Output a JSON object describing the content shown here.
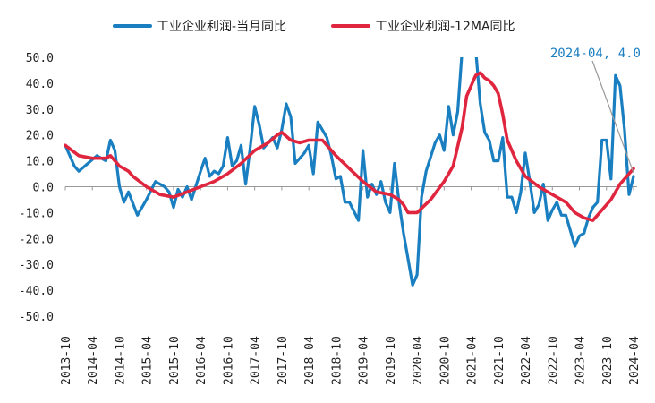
{
  "chart_data": {
    "type": "line",
    "ylim": [
      -50,
      50
    ],
    "ytick_labels": [
      "50.0",
      "40.0",
      "30.0",
      "20.0",
      "10.0",
      "0.0",
      "-10.0",
      "-20.0",
      "-30.0",
      "-40.0",
      "-50.0"
    ],
    "xtick_labels": [
      "2013-10",
      "2014-04",
      "2014-10",
      "2015-04",
      "2015-10",
      "2016-04",
      "2016-10",
      "2017-04",
      "2017-10",
      "2018-04",
      "2018-10",
      "2019-04",
      "2019-10",
      "2020-04",
      "2020-10",
      "2021-04",
      "2021-10",
      "2022-04",
      "2022-10",
      "2023-04",
      "2023-10",
      "2024-04"
    ],
    "x_start": "2013-10",
    "x_end": "2024-04",
    "series": [
      {
        "name": "工业企业利润-当月同比",
        "color": "#1a7fc1",
        "points": [
          [
            "2013-10",
            16
          ],
          [
            "2013-12",
            8
          ],
          [
            "2014-01",
            6
          ],
          [
            "2014-03",
            9
          ],
          [
            "2014-05",
            12
          ],
          [
            "2014-06",
            11
          ],
          [
            "2014-07",
            10
          ],
          [
            "2014-08",
            18
          ],
          [
            "2014-09",
            14
          ],
          [
            "2014-10",
            0
          ],
          [
            "2014-11",
            -6
          ],
          [
            "2014-12",
            -2
          ],
          [
            "2015-02",
            -11
          ],
          [
            "2015-04",
            -5
          ],
          [
            "2015-06",
            2
          ],
          [
            "2015-08",
            0
          ],
          [
            "2015-09",
            -2
          ],
          [
            "2015-10",
            -8
          ],
          [
            "2015-11",
            -1
          ],
          [
            "2015-12",
            -4
          ],
          [
            "2016-01",
            0
          ],
          [
            "2016-02",
            -5
          ],
          [
            "2016-04",
            6
          ],
          [
            "2016-05",
            11
          ],
          [
            "2016-06",
            4
          ],
          [
            "2016-07",
            6
          ],
          [
            "2016-08",
            5
          ],
          [
            "2016-09",
            8
          ],
          [
            "2016-10",
            19
          ],
          [
            "2016-11",
            8
          ],
          [
            "2016-12",
            10
          ],
          [
            "2017-01",
            16
          ],
          [
            "2017-02",
            1
          ],
          [
            "2017-03",
            15
          ],
          [
            "2017-04",
            31
          ],
          [
            "2017-05",
            24
          ],
          [
            "2017-06",
            15
          ],
          [
            "2017-08",
            19
          ],
          [
            "2017-09",
            15
          ],
          [
            "2017-10",
            22
          ],
          [
            "2017-11",
            32
          ],
          [
            "2017-12",
            27
          ],
          [
            "2018-01",
            9
          ],
          [
            "2018-03",
            13
          ],
          [
            "2018-04",
            16
          ],
          [
            "2018-05",
            5
          ],
          [
            "2018-06",
            25
          ],
          [
            "2018-08",
            19
          ],
          [
            "2018-09",
            12
          ],
          [
            "2018-10",
            3
          ],
          [
            "2018-11",
            4
          ],
          [
            "2018-12",
            -6
          ],
          [
            "2019-01",
            -6
          ],
          [
            "2019-03",
            -13
          ],
          [
            "2019-04",
            14
          ],
          [
            "2019-05",
            -4
          ],
          [
            "2019-06",
            1
          ],
          [
            "2019-07",
            -3
          ],
          [
            "2019-08",
            2
          ],
          [
            "2019-09",
            -6
          ],
          [
            "2019-10",
            -10
          ],
          [
            "2019-11",
            9
          ],
          [
            "2019-12",
            -6
          ],
          [
            "2020-01",
            -18
          ],
          [
            "2020-03",
            -38
          ],
          [
            "2020-04",
            -34
          ],
          [
            "2020-05",
            -4
          ],
          [
            "2020-06",
            6
          ],
          [
            "2020-08",
            17
          ],
          [
            "2020-09",
            20
          ],
          [
            "2020-10",
            14
          ],
          [
            "2020-11",
            31
          ],
          [
            "2020-12",
            20
          ],
          [
            "2021-01",
            29
          ],
          [
            "2021-02",
            53
          ],
          [
            "2021-04",
            55
          ],
          [
            "2021-05",
            53
          ],
          [
            "2021-06",
            32
          ],
          [
            "2021-07",
            21
          ],
          [
            "2021-08",
            18
          ],
          [
            "2021-09",
            10
          ],
          [
            "2021-10",
            10
          ],
          [
            "2021-11",
            19
          ],
          [
            "2021-12",
            -4
          ],
          [
            "2022-01",
            -4
          ],
          [
            "2022-02",
            -10
          ],
          [
            "2022-03",
            -2
          ],
          [
            "2022-04",
            13
          ],
          [
            "2022-05",
            2
          ],
          [
            "2022-06",
            -10
          ],
          [
            "2022-07",
            -7
          ],
          [
            "2022-08",
            1
          ],
          [
            "2022-09",
            -13
          ],
          [
            "2022-10",
            -9
          ],
          [
            "2022-11",
            -6
          ],
          [
            "2022-12",
            -11
          ],
          [
            "2023-01",
            -11
          ],
          [
            "2023-02",
            -17
          ],
          [
            "2023-03",
            -23
          ],
          [
            "2023-04",
            -19
          ],
          [
            "2023-05",
            -18
          ],
          [
            "2023-06",
            -12
          ],
          [
            "2023-07",
            -8
          ],
          [
            "2023-08",
            -6
          ],
          [
            "2023-09",
            18
          ],
          [
            "2023-10",
            18
          ],
          [
            "2023-11",
            3
          ],
          [
            "2023-12",
            43
          ],
          [
            "2024-01",
            39
          ],
          [
            "2024-02",
            22
          ],
          [
            "2024-03",
            -3
          ],
          [
            "2024-04",
            4
          ]
        ]
      },
      {
        "name": "工业企业利润-12MA同比",
        "color": "#e0263f",
        "points": [
          [
            "2013-10",
            16
          ],
          [
            "2014-01",
            12
          ],
          [
            "2014-04",
            11
          ],
          [
            "2014-07",
            11
          ],
          [
            "2014-08",
            12
          ],
          [
            "2014-10",
            8
          ],
          [
            "2014-12",
            6
          ],
          [
            "2015-01",
            4
          ],
          [
            "2015-04",
            0
          ],
          [
            "2015-07",
            -3
          ],
          [
            "2015-10",
            -4
          ],
          [
            "2016-01",
            -2
          ],
          [
            "2016-04",
            0
          ],
          [
            "2016-07",
            2
          ],
          [
            "2016-10",
            5
          ],
          [
            "2017-01",
            9
          ],
          [
            "2017-04",
            14
          ],
          [
            "2017-07",
            17
          ],
          [
            "2017-09",
            20
          ],
          [
            "2017-10",
            21
          ],
          [
            "2017-12",
            18
          ],
          [
            "2018-02",
            17
          ],
          [
            "2018-04",
            18
          ],
          [
            "2018-07",
            18
          ],
          [
            "2018-10",
            12
          ],
          [
            "2019-01",
            7
          ],
          [
            "2019-04",
            2
          ],
          [
            "2019-07",
            -2
          ],
          [
            "2019-10",
            -3
          ],
          [
            "2019-12",
            -5
          ],
          [
            "2020-01",
            -7
          ],
          [
            "2020-02",
            -10
          ],
          [
            "2020-04",
            -10
          ],
          [
            "2020-07",
            -5
          ],
          [
            "2020-10",
            2
          ],
          [
            "2020-12",
            8
          ],
          [
            "2021-02",
            23
          ],
          [
            "2021-03",
            35
          ],
          [
            "2021-05",
            43
          ],
          [
            "2021-06",
            44
          ],
          [
            "2021-07",
            42
          ],
          [
            "2021-08",
            41
          ],
          [
            "2021-09",
            39
          ],
          [
            "2021-10",
            36
          ],
          [
            "2021-11",
            28
          ],
          [
            "2021-12",
            18
          ],
          [
            "2022-02",
            10
          ],
          [
            "2022-04",
            4
          ],
          [
            "2022-07",
            0
          ],
          [
            "2022-09",
            -2
          ],
          [
            "2022-11",
            -4
          ],
          [
            "2023-01",
            -6
          ],
          [
            "2023-03",
            -10
          ],
          [
            "2023-05",
            -12
          ],
          [
            "2023-07",
            -13
          ],
          [
            "2023-09",
            -9
          ],
          [
            "2023-11",
            -5
          ],
          [
            "2024-01",
            1
          ],
          [
            "2024-03",
            5
          ],
          [
            "2024-04",
            7
          ]
        ]
      }
    ],
    "annotation": {
      "text": "2024-04, 4.0",
      "color": "#1a7fc1",
      "point": [
        "2024-04",
        4.0
      ]
    },
    "legend_position": "top",
    "grid": false
  }
}
